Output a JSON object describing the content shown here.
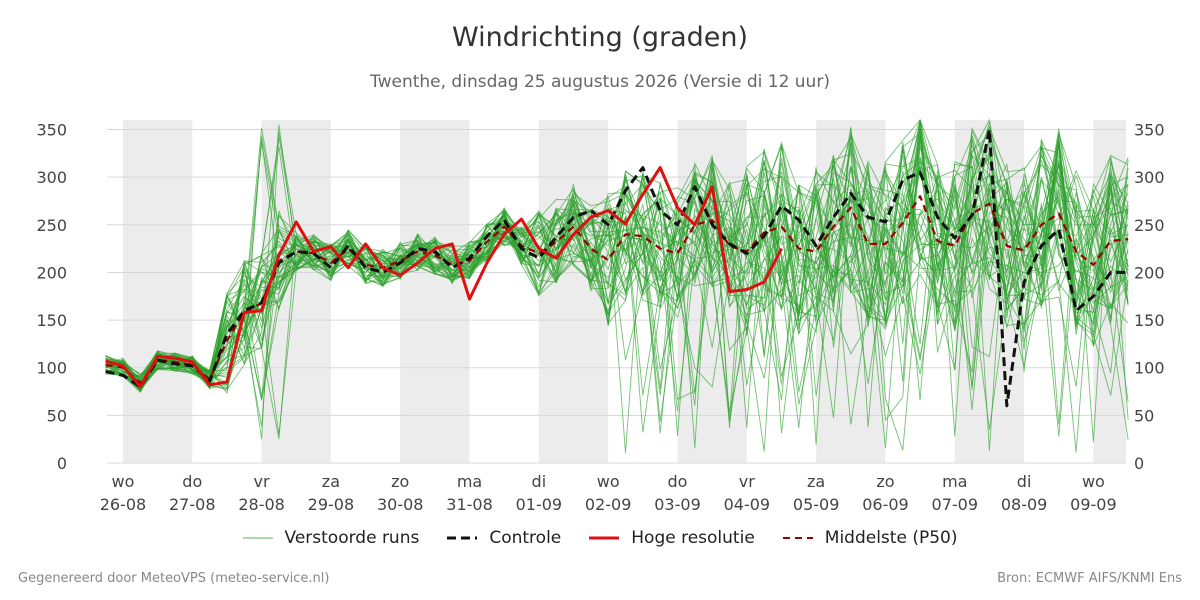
{
  "header": {
    "title": "Windrichting (graden)",
    "subtitle": "Twenthe, dinsdag 25 augustus 2026 (Versie di 12 uur)"
  },
  "legend": {
    "items": [
      {
        "label": "Verstoorde runs",
        "color": "#2ca02c",
        "style": "thin"
      },
      {
        "label": "Controle",
        "color": "#111111",
        "style": "dashed-bold"
      },
      {
        "label": "Hoge resolutie",
        "color": "#dd1111",
        "style": "solid-bold"
      },
      {
        "label": "Middelste (P50)",
        "color": "#990000",
        "style": "dashed"
      }
    ]
  },
  "footer": {
    "left": "Gegenereerd door MeteoVPS (meteo-service.nl)",
    "right": "Bron: ECMWF AIFS/KNMI Ens"
  },
  "chart_data": {
    "type": "line",
    "x_unit": "days since 2026-08-26 00:00",
    "xlim": [
      -0.23,
      14.47
    ],
    "ylim": [
      0,
      360
    ],
    "y_ticks": [
      0,
      50,
      100,
      150,
      200,
      250,
      300,
      350
    ],
    "grid": true,
    "x_ticks": [
      {
        "day": "wo",
        "date": "26-08"
      },
      {
        "day": "do",
        "date": "27-08"
      },
      {
        "day": "vr",
        "date": "28-08"
      },
      {
        "day": "za",
        "date": "29-08"
      },
      {
        "day": "zo",
        "date": "30-08"
      },
      {
        "day": "ma",
        "date": "31-08"
      },
      {
        "day": "di",
        "date": "01-09"
      },
      {
        "day": "wo",
        "date": "02-09"
      },
      {
        "day": "do",
        "date": "03-09"
      },
      {
        "day": "vr",
        "date": "04-09"
      },
      {
        "day": "za",
        "date": "05-09"
      },
      {
        "day": "zo",
        "date": "06-09"
      },
      {
        "day": "ma",
        "date": "07-09"
      },
      {
        "day": "di",
        "date": "08-09"
      },
      {
        "day": "wo",
        "date": "09-09"
      }
    ],
    "shaded_bands": [
      [
        0,
        1
      ],
      [
        2,
        3
      ],
      [
        4,
        5
      ],
      [
        6,
        7
      ],
      [
        8,
        9
      ],
      [
        10,
        11
      ],
      [
        12,
        13
      ],
      [
        14,
        14.47
      ]
    ],
    "series": [
      {
        "name": "Controle",
        "x": [
          -0.25,
          0,
          0.25,
          0.5,
          0.75,
          1,
          1.25,
          1.5,
          1.75,
          2,
          2.25,
          2.5,
          2.75,
          3,
          3.25,
          3.5,
          3.75,
          4,
          4.25,
          4.5,
          4.75,
          5,
          5.25,
          5.5,
          5.75,
          6,
          6.25,
          6.5,
          6.75,
          7,
          7.25,
          7.5,
          7.75,
          8,
          8.25,
          8.5,
          8.75,
          9,
          9.25,
          9.5,
          9.75,
          10,
          10.25,
          10.5,
          10.75,
          11,
          11.25,
          11.5,
          11.75,
          12,
          12.25,
          12.5,
          12.75,
          13,
          13.25,
          13.5,
          13.75,
          14,
          14.25,
          14.5
        ],
        "values": [
          96,
          92,
          80,
          108,
          104,
          102,
          86,
          135,
          160,
          168,
          210,
          222,
          220,
          205,
          228,
          205,
          200,
          210,
          225,
          222,
          205,
          215,
          238,
          255,
          225,
          215,
          237,
          258,
          265,
          250,
          286,
          310,
          265,
          250,
          290,
          250,
          230,
          220,
          238,
          270,
          255,
          228,
          258,
          283,
          258,
          253,
          297,
          305,
          258,
          236,
          260,
          350,
          60,
          190,
          228,
          245,
          160,
          175,
          200,
          200
        ]
      },
      {
        "name": "Hoge resolutie",
        "x": [
          -0.25,
          0,
          0.25,
          0.5,
          0.75,
          1,
          1.25,
          1.5,
          1.75,
          2,
          2.25,
          2.5,
          2.75,
          3,
          3.25,
          3.5,
          3.75,
          4,
          4.25,
          4.5,
          4.75,
          5,
          5.25,
          5.5,
          5.75,
          6,
          6.25,
          6.5,
          6.75,
          7,
          7.25,
          7.5,
          7.75,
          8,
          8.25,
          8.5,
          8.75,
          9,
          9.25,
          9.5
        ],
        "values": [
          107,
          102,
          80,
          112,
          110,
          106,
          82,
          85,
          158,
          160,
          218,
          253,
          222,
          227,
          205,
          230,
          205,
          197,
          210,
          225,
          230,
          172,
          210,
          240,
          256,
          225,
          215,
          240,
          258,
          265,
          251,
          282,
          310,
          268,
          250,
          290,
          180,
          182,
          190,
          225
        ]
      },
      {
        "name": "Middelste (P50)",
        "x": [
          -0.25,
          0,
          0.25,
          0.5,
          0.75,
          1,
          1.25,
          1.5,
          1.75,
          2,
          2.25,
          2.5,
          2.75,
          3,
          3.25,
          3.5,
          3.75,
          4,
          4.25,
          4.5,
          4.75,
          5,
          5.25,
          5.5,
          5.75,
          6,
          6.25,
          6.5,
          6.75,
          7,
          7.25,
          7.5,
          7.75,
          8,
          8.25,
          8.5,
          8.75,
          9,
          9.25,
          9.5,
          9.75,
          10,
          10.25,
          10.5,
          10.75,
          11,
          11.25,
          11.5,
          11.75,
          12,
          12.25,
          12.5,
          12.75,
          13,
          13.25,
          13.5,
          13.75,
          14,
          14.25,
          14.5
        ],
        "values": [
          103,
          100,
          84,
          108,
          106,
          103,
          88,
          128,
          158,
          168,
          212,
          222,
          220,
          210,
          225,
          208,
          205,
          212,
          222,
          218,
          208,
          212,
          232,
          248,
          228,
          220,
          232,
          248,
          225,
          213,
          240,
          238,
          225,
          220,
          250,
          255,
          228,
          222,
          242,
          248,
          225,
          222,
          248,
          268,
          230,
          230,
          252,
          280,
          233,
          228,
          262,
          272,
          228,
          223,
          250,
          262,
          222,
          208,
          233,
          235
        ]
      }
    ]
  }
}
